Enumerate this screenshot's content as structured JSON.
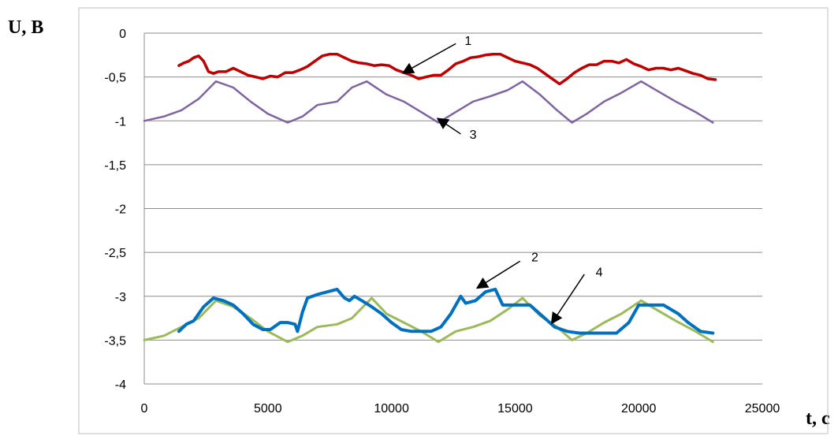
{
  "chart_data": {
    "type": "line",
    "ylabel": "U, B",
    "xlabel": "t, c",
    "xlim": [
      0,
      25000
    ],
    "ylim": [
      -4,
      0
    ],
    "x_ticks": [
      "0",
      "5000",
      "10000",
      "15000",
      "20000",
      "25000"
    ],
    "y_ticks": [
      "0",
      "-0,5",
      "-1",
      "-1,5",
      "-2",
      "-2,5",
      "-3",
      "-3,5",
      "-4"
    ],
    "grid": "horizontal",
    "legend": "none",
    "series": [
      {
        "color": "#C00000",
        "x": [
          1400,
          1600,
          1800,
          2000,
          2200,
          2400,
          2600,
          2800,
          3000,
          3300,
          3600,
          3900,
          4200,
          4500,
          4800,
          5100,
          5400,
          5700,
          6000,
          6300,
          6600,
          6900,
          7200,
          7500,
          7800,
          8100,
          8400,
          8700,
          9000,
          9300,
          9600,
          9900,
          10200,
          10500,
          10800,
          11100,
          11400,
          11700,
          12000,
          12300,
          12600,
          12900,
          13200,
          13500,
          13800,
          14100,
          14400,
          14700,
          15000,
          15300,
          15600,
          15900,
          16200,
          16500,
          16800,
          17100,
          17400,
          17700,
          18000,
          18300,
          18600,
          18900,
          19200,
          19500,
          19800,
          20100,
          20400,
          20700,
          21000,
          21300,
          21600,
          21900,
          22200,
          22500,
          22800,
          23100
        ],
        "values": [
          -0.37,
          -0.34,
          -0.32,
          -0.28,
          -0.26,
          -0.32,
          -0.44,
          -0.46,
          -0.44,
          -0.44,
          -0.4,
          -0.44,
          -0.48,
          -0.5,
          -0.52,
          -0.49,
          -0.5,
          -0.45,
          -0.45,
          -0.42,
          -0.38,
          -0.32,
          -0.26,
          -0.24,
          -0.24,
          -0.28,
          -0.32,
          -0.34,
          -0.35,
          -0.37,
          -0.36,
          -0.37,
          -0.42,
          -0.45,
          -0.48,
          -0.52,
          -0.5,
          -0.48,
          -0.48,
          -0.42,
          -0.35,
          -0.32,
          -0.28,
          -0.27,
          -0.25,
          -0.24,
          -0.24,
          -0.28,
          -0.32,
          -0.34,
          -0.36,
          -0.4,
          -0.46,
          -0.52,
          -0.58,
          -0.52,
          -0.45,
          -0.4,
          -0.36,
          -0.36,
          -0.32,
          -0.32,
          -0.34,
          -0.3,
          -0.35,
          -0.38,
          -0.42,
          -0.4,
          -0.4,
          -0.42,
          -0.4,
          -0.43,
          -0.46,
          -0.48,
          -0.52,
          -0.53
        ]
      },
      {
        "color": "#0070C0",
        "x": [
          1400,
          1700,
          2000,
          2400,
          2800,
          3200,
          3600,
          4000,
          4400,
          4800,
          5100,
          5500,
          5800,
          6100,
          6200,
          6400,
          6600,
          7000,
          7400,
          7800,
          8100,
          8300,
          8500,
          8800,
          9200,
          9600,
          10000,
          10400,
          10800,
          11200,
          11600,
          12000,
          12400,
          12800,
          13000,
          13400,
          13800,
          14200,
          14500,
          15000,
          15600,
          16000,
          16600,
          17100,
          17600,
          18100,
          18600,
          19100,
          19600,
          20000,
          20400,
          21000,
          21600,
          22000,
          22500,
          23000
        ],
        "values": [
          -3.4,
          -3.32,
          -3.28,
          -3.12,
          -3.02,
          -3.05,
          -3.1,
          -3.2,
          -3.32,
          -3.38,
          -3.38,
          -3.3,
          -3.3,
          -3.32,
          -3.4,
          -3.18,
          -3.02,
          -2.98,
          -2.95,
          -2.92,
          -3.02,
          -3.05,
          -3.0,
          -3.05,
          -3.12,
          -3.2,
          -3.3,
          -3.38,
          -3.4,
          -3.4,
          -3.4,
          -3.35,
          -3.2,
          -3.0,
          -3.08,
          -3.05,
          -2.95,
          -2.92,
          -3.1,
          -3.1,
          -3.1,
          -3.2,
          -3.35,
          -3.4,
          -3.42,
          -3.42,
          -3.42,
          -3.42,
          -3.3,
          -3.1,
          -3.1,
          -3.1,
          -3.2,
          -3.3,
          -3.4,
          -3.42
        ]
      },
      {
        "color": "#8064A2",
        "x": [
          0,
          800,
          1500,
          2200,
          2900,
          3600,
          4300,
          5000,
          5800,
          6400,
          7000,
          7800,
          8400,
          9000,
          9800,
          10500,
          11200,
          11900,
          12600,
          13300,
          14000,
          14700,
          15300,
          16000,
          16700,
          17300,
          17900,
          18600,
          19300,
          20100,
          20700,
          21500,
          22300,
          23000
        ],
        "values": [
          -1.0,
          -0.95,
          -0.88,
          -0.75,
          -0.55,
          -0.62,
          -0.78,
          -0.92,
          -1.02,
          -0.95,
          -0.82,
          -0.78,
          -0.62,
          -0.55,
          -0.7,
          -0.78,
          -0.9,
          -1.02,
          -0.9,
          -0.78,
          -0.72,
          -0.65,
          -0.55,
          -0.7,
          -0.88,
          -1.02,
          -0.92,
          -0.78,
          -0.68,
          -0.55,
          -0.65,
          -0.78,
          -0.9,
          -1.02
        ]
      },
      {
        "color": "#9BBB59",
        "x": [
          0,
          800,
          1500,
          2200,
          2900,
          3600,
          4300,
          5000,
          5800,
          6400,
          7000,
          7800,
          8400,
          9200,
          9800,
          10500,
          11200,
          11900,
          12600,
          13300,
          14000,
          14700,
          15300,
          16000,
          16700,
          17300,
          17900,
          18600,
          19300,
          20100,
          20700,
          21500,
          22300,
          23000
        ],
        "values": [
          -3.5,
          -3.45,
          -3.35,
          -3.25,
          -3.05,
          -3.12,
          -3.25,
          -3.4,
          -3.52,
          -3.45,
          -3.35,
          -3.32,
          -3.25,
          -3.02,
          -3.2,
          -3.3,
          -3.4,
          -3.52,
          -3.4,
          -3.35,
          -3.28,
          -3.15,
          -3.02,
          -3.22,
          -3.35,
          -3.5,
          -3.42,
          -3.3,
          -3.2,
          -3.05,
          -3.15,
          -3.28,
          -3.4,
          -3.52
        ]
      }
    ],
    "annotations": [
      {
        "text": "1"
      },
      {
        "text": "2"
      },
      {
        "text": "3"
      },
      {
        "text": "4"
      }
    ]
  }
}
